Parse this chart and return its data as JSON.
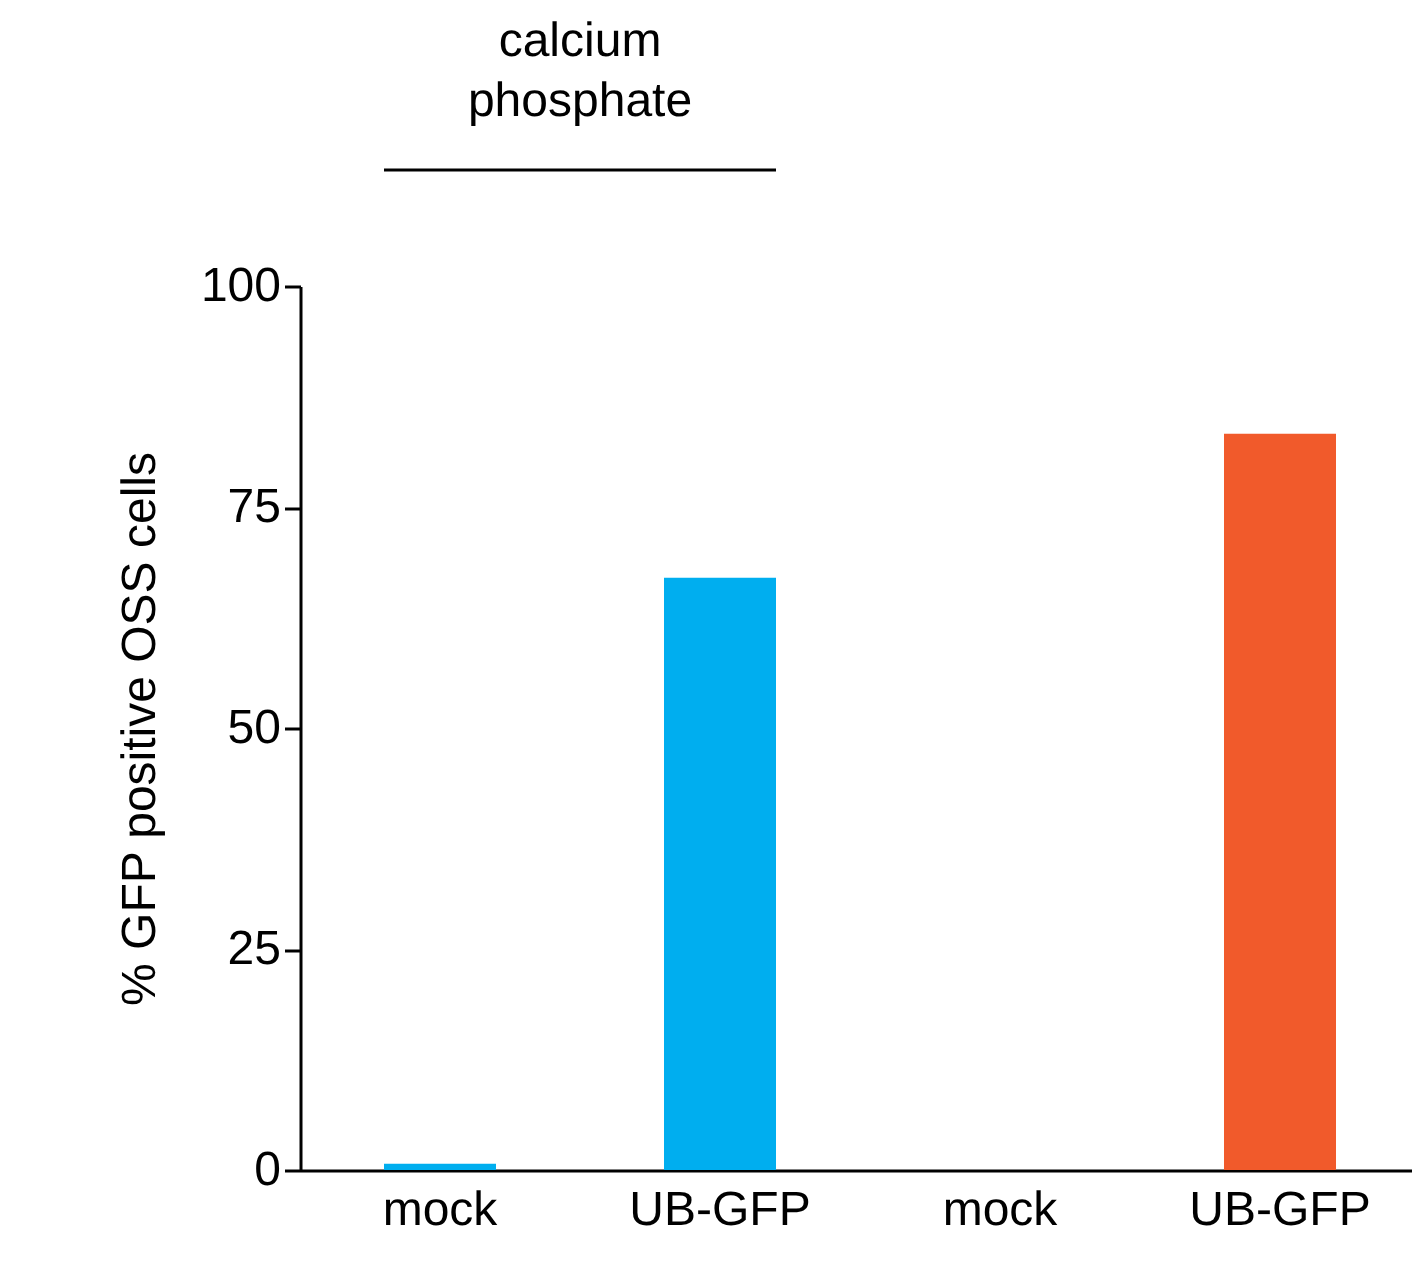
{
  "chart_data": {
    "type": "bar",
    "ylabel": "% GFP positive OSS cells",
    "categories": [
      "mock",
      "UB-GFP",
      "mock",
      "UB-GFP"
    ],
    "values": [
      0.7,
      67,
      0,
      83.3
    ],
    "colors": [
      "#00aeef",
      "#00aeef",
      "#f15a2b",
      "#f15a2b"
    ],
    "ylim": [
      0,
      100
    ],
    "yticks": [
      0,
      25,
      50,
      75,
      100
    ],
    "grid": false,
    "annotations": [
      "calcium phosphate"
    ]
  }
}
